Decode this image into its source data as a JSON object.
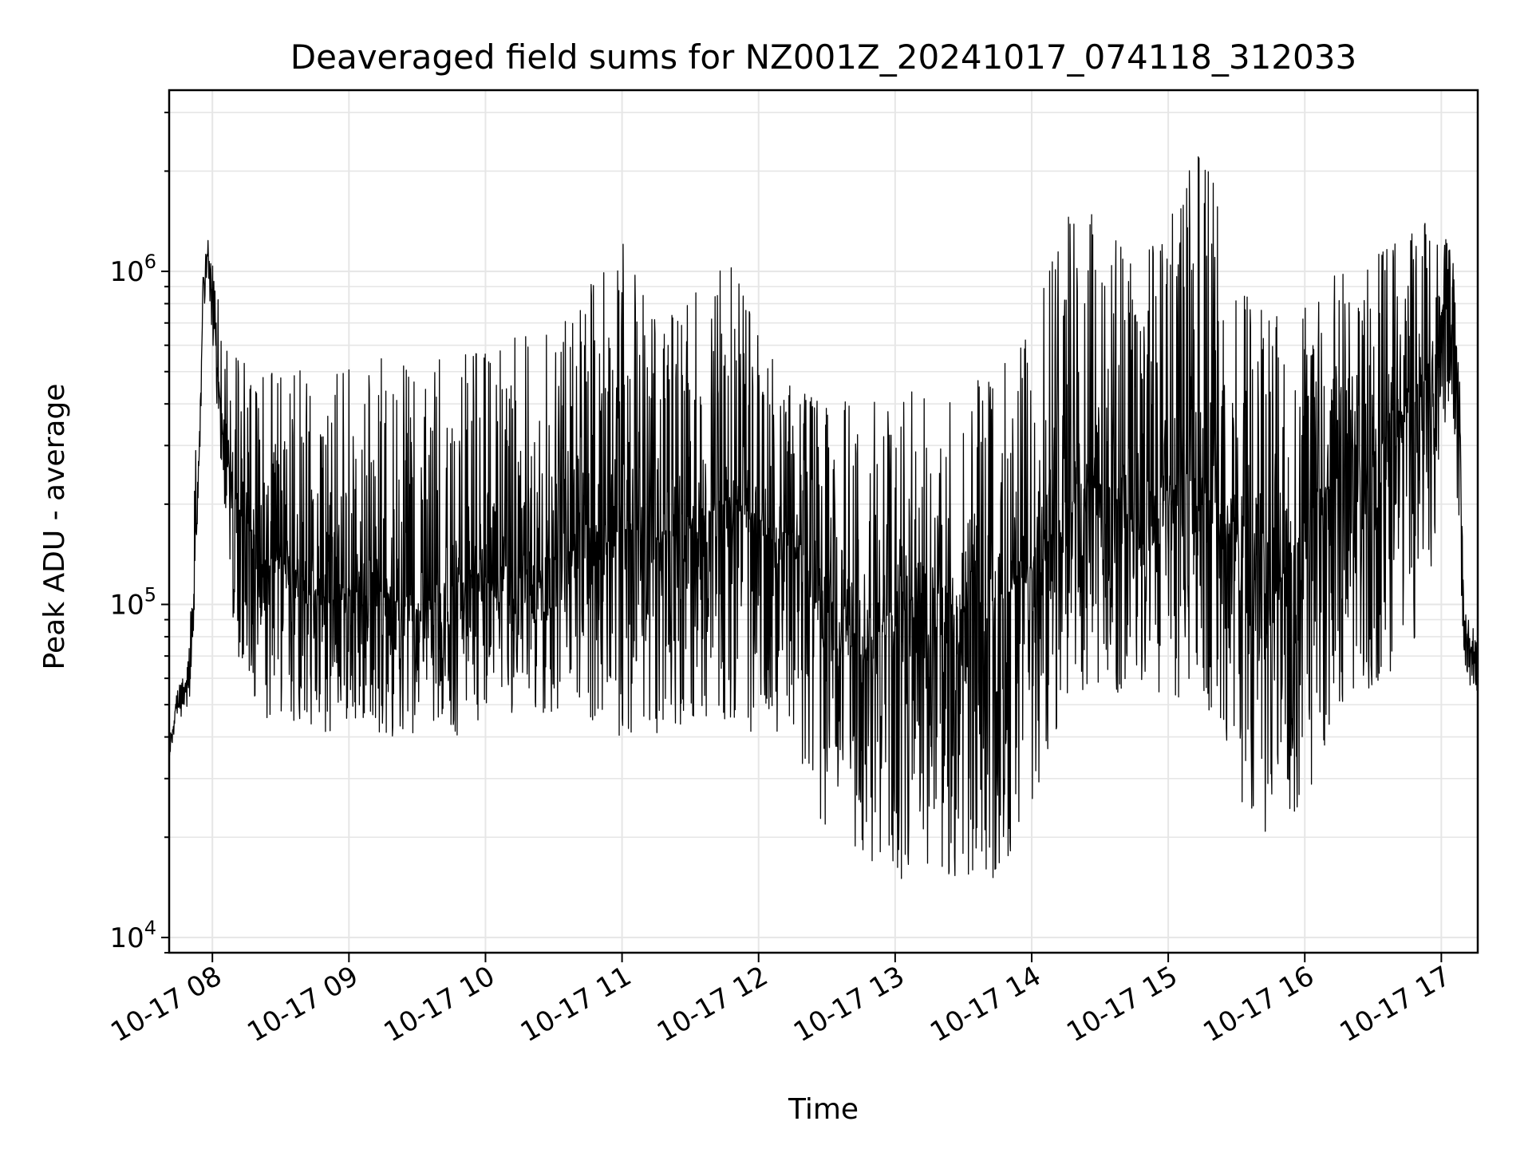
{
  "chart_data": {
    "type": "line",
    "title": "Deaveraged field sums for NZ001Z_20241017_074118_312033",
    "xlabel": "Time",
    "ylabel": "Peak ADU - average",
    "yscale": "log",
    "ylim": [
      9000,
      3500000
    ],
    "xlim": [
      "2024-10-17 07:41",
      "2024-10-17 17:16"
    ],
    "grid": true,
    "line_color": "#000000",
    "grid_color": "#e6e6e6",
    "x_ticks": [
      {
        "t": "2024-10-17 08:00",
        "label": "10-17 08"
      },
      {
        "t": "2024-10-17 09:00",
        "label": "10-17 09"
      },
      {
        "t": "2024-10-17 10:00",
        "label": "10-17 10"
      },
      {
        "t": "2024-10-17 11:00",
        "label": "10-17 11"
      },
      {
        "t": "2024-10-17 12:00",
        "label": "10-17 12"
      },
      {
        "t": "2024-10-17 13:00",
        "label": "10-17 13"
      },
      {
        "t": "2024-10-17 14:00",
        "label": "10-17 14"
      },
      {
        "t": "2024-10-17 15:00",
        "label": "10-17 15"
      },
      {
        "t": "2024-10-17 16:00",
        "label": "10-17 16"
      },
      {
        "t": "2024-10-17 17:00",
        "label": "10-17 17"
      }
    ],
    "y_ticks": [
      {
        "value": 10000,
        "base": "10",
        "exp": "4"
      },
      {
        "value": 100000,
        "base": "10",
        "exp": "5"
      },
      {
        "value": 1000000,
        "base": "10",
        "exp": "6"
      }
    ],
    "series": [
      {
        "x": [
          "2024-10-17 07:41",
          "2024-10-17 07:44",
          "2024-10-17 07:47",
          "2024-10-17 07:50",
          "2024-10-17 07:52",
          "2024-10-17 07:54",
          "2024-10-17 07:56",
          "2024-10-17 07:58",
          "2024-10-17 08:00",
          "2024-10-17 08:03",
          "2024-10-17 08:06",
          "2024-10-17 08:10",
          "2024-10-17 08:15",
          "2024-10-17 08:20",
          "2024-10-17 08:30",
          "2024-10-17 08:40",
          "2024-10-17 08:50",
          "2024-10-17 09:00",
          "2024-10-17 09:15",
          "2024-10-17 09:30",
          "2024-10-17 09:45",
          "2024-10-17 10:00",
          "2024-10-17 10:15",
          "2024-10-17 10:30",
          "2024-10-17 10:45",
          "2024-10-17 11:00",
          "2024-10-17 11:15",
          "2024-10-17 11:30",
          "2024-10-17 11:45",
          "2024-10-17 12:00",
          "2024-10-17 12:15",
          "2024-10-17 12:30",
          "2024-10-17 12:45",
          "2024-10-17 13:00",
          "2024-10-17 13:15",
          "2024-10-17 13:30",
          "2024-10-17 13:45",
          "2024-10-17 14:00",
          "2024-10-17 14:15",
          "2024-10-17 14:30",
          "2024-10-17 14:45",
          "2024-10-17 15:00",
          "2024-10-17 15:15",
          "2024-10-17 15:30",
          "2024-10-17 15:45",
          "2024-10-17 16:00",
          "2024-10-17 16:15",
          "2024-10-17 16:30",
          "2024-10-17 16:45",
          "2024-10-17 16:55",
          "2024-10-17 17:00",
          "2024-10-17 17:05",
          "2024-10-17 17:08",
          "2024-10-17 17:10",
          "2024-10-17 17:13",
          "2024-10-17 17:16"
        ],
        "y_center": [
          35000,
          50000,
          52000,
          60000,
          120000,
          250000,
          900000,
          1150000,
          800000,
          450000,
          280000,
          200000,
          180000,
          130000,
          140000,
          120000,
          100000,
          110000,
          105000,
          100000,
          115000,
          120000,
          125000,
          140000,
          150000,
          170000,
          160000,
          175000,
          200000,
          180000,
          160000,
          95000,
          70000,
          100000,
          110000,
          95000,
          100000,
          130000,
          200000,
          230000,
          210000,
          230000,
          240000,
          150000,
          100000,
          180000,
          260000,
          280000,
          380000,
          500000,
          750000,
          900000,
          380000,
          85000,
          75000,
          60000
        ],
        "y_low": [
          33000,
          45000,
          45000,
          52000,
          90000,
          180000,
          700000,
          950000,
          600000,
          300000,
          180000,
          70000,
          55000,
          45000,
          45000,
          40000,
          40000,
          45000,
          40000,
          40000,
          40000,
          40000,
          45000,
          45000,
          45000,
          40000,
          40000,
          45000,
          45000,
          40000,
          40000,
          20000,
          18000,
          15000,
          15000,
          15000,
          15000,
          25000,
          50000,
          55000,
          50000,
          50000,
          55000,
          25000,
          20000,
          25000,
          50000,
          55000,
          70000,
          90000,
          300000,
          400000,
          150000,
          60000,
          55000,
          50000
        ],
        "y_high": [
          40000,
          55000,
          60000,
          80000,
          250000,
          400000,
          1100000,
          1300000,
          1150000,
          800000,
          600000,
          550000,
          550000,
          500000,
          500000,
          520000,
          500000,
          520000,
          550000,
          520000,
          560000,
          580000,
          650000,
          700000,
          900000,
          1300000,
          700000,
          800000,
          1300000,
          650000,
          450000,
          420000,
          400000,
          420000,
          450000,
          450000,
          500000,
          750000,
          1500000,
          1500000,
          1100000,
          1400000,
          2600000,
          900000,
          800000,
          800000,
          1000000,
          1100000,
          1300000,
          1600000,
          1400000,
          1200000,
          500000,
          95000,
          90000,
          75000
        ]
      }
    ]
  }
}
